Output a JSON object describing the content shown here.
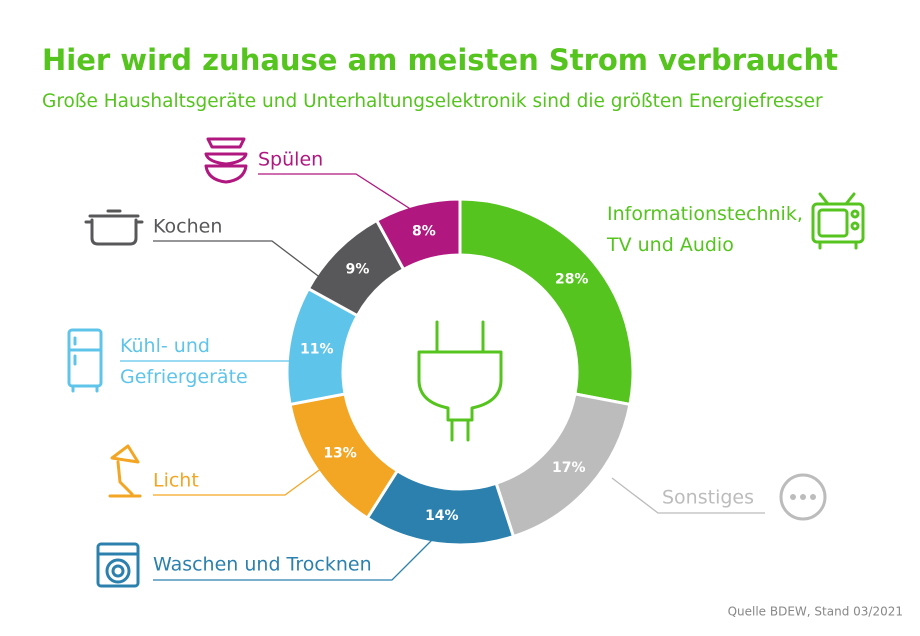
{
  "chart_data": {
    "type": "donut",
    "title": "Hier wird zuhause am meisten Strom verbraucht",
    "subtitle": "Große Haushaltsgeräte und Unterhaltungselektronik sind die größten Energiefresser",
    "source": "Quelle BDEW, Stand 03/2021",
    "categories": [
      "Informationstechnik,\nTV und Audio",
      "Sonstiges",
      "Waschen und Trocknen",
      "Licht",
      "Kühl- und\nGefriergeräte",
      "Kochen",
      "Spülen"
    ],
    "values": [
      28,
      17,
      14,
      13,
      11,
      9,
      8
    ],
    "value_labels": [
      "28%",
      "17%",
      "14%",
      "13%",
      "11%",
      "9%",
      "8%"
    ],
    "colors": [
      "#55c41e",
      "#bcbcbc",
      "#2b80ad",
      "#f3a623",
      "#5ec4e9",
      "#58585a",
      "#b0177f"
    ]
  }
}
